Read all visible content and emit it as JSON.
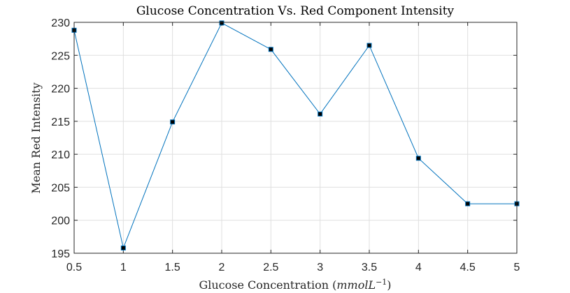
{
  "chart_data": {
    "type": "line",
    "title": "Glucose Concentration Vs. Red Component Intensity",
    "xlabel_main": "Glucose Concentration (",
    "xlabel_unit": "mmolL",
    "xlabel_exp": "−1",
    "xlabel_close": ")",
    "ylabel": "Mean Red Intensity",
    "xlim": [
      0.5,
      5
    ],
    "ylim": [
      195,
      230
    ],
    "xticks": [
      "0.5",
      "1",
      "1.5",
      "2",
      "2.5",
      "3",
      "3.5",
      "4",
      "4.5",
      "5"
    ],
    "yticks": [
      "195",
      "200",
      "205",
      "210",
      "215",
      "220",
      "225",
      "230"
    ],
    "grid": true,
    "x": [
      0.5,
      1,
      1.5,
      2,
      2.5,
      3,
      3.5,
      4,
      4.5,
      5
    ],
    "y": [
      228.8,
      195.8,
      214.9,
      229.9,
      225.9,
      216.1,
      226.5,
      209.4,
      202.5,
      202.5
    ],
    "series_color": "#0072bd",
    "marker_color": "#000000"
  }
}
